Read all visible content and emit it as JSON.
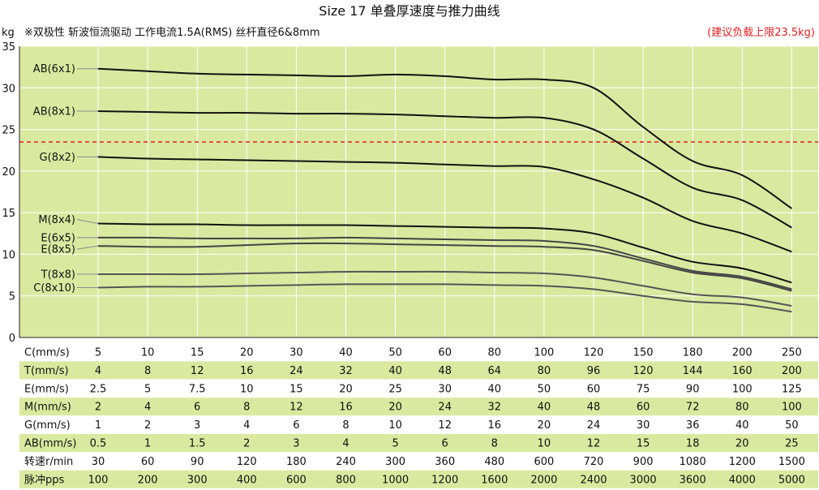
{
  "title": "Size 17 单叠厚速度与推力曲线",
  "subtitle": "※双极性 斩波恒流驱动 工作电流1.5A(RMS)  丝杆直径6&8mm",
  "ylabel": "kg",
  "note": "(建议负载上限23.5kg)",
  "colors": {
    "plot_bg": "#d9eaa0",
    "grid": "#ffffff",
    "curve_dark": "#111111",
    "curve_grey": "#555555",
    "limit_line": "#e02020",
    "note": "#e02020",
    "row_stripe": "#d9eaa0"
  },
  "chart_data": {
    "type": "line",
    "title": "Size 17 单叠厚速度与推力曲线",
    "ylabel": "kg",
    "ylim": [
      0,
      35
    ],
    "yticks": [
      "0",
      "5",
      "10",
      "15",
      "20",
      "25",
      "30",
      "35"
    ],
    "grid": true,
    "point_count": 15,
    "limit_line": {
      "value": 23.5,
      "label": "(建议负载上限23.5kg)"
    },
    "series": [
      {
        "name": "AB(6x1)",
        "color": "#111111",
        "values": [
          32.3,
          32.0,
          31.7,
          31.6,
          31.5,
          31.4,
          31.6,
          31.4,
          31.0,
          31.0,
          30.0,
          25.3,
          21.2,
          19.5,
          15.5
        ]
      },
      {
        "name": "AB(8x1)",
        "color": "#111111",
        "values": [
          27.2,
          27.1,
          27.0,
          27.0,
          26.9,
          26.9,
          26.8,
          26.6,
          26.4,
          26.4,
          25.0,
          21.5,
          18.0,
          16.5,
          13.2
        ]
      },
      {
        "name": "G(8x2)",
        "color": "#111111",
        "values": [
          21.7,
          21.5,
          21.4,
          21.3,
          21.2,
          21.1,
          21.0,
          20.8,
          20.6,
          20.5,
          19.0,
          16.8,
          14.0,
          12.5,
          10.3
        ]
      },
      {
        "name": "M(8x4)",
        "color": "#111111",
        "values": [
          13.7,
          13.6,
          13.6,
          13.5,
          13.5,
          13.5,
          13.4,
          13.3,
          13.2,
          13.1,
          12.5,
          10.8,
          9.1,
          8.3,
          6.6
        ]
      },
      {
        "name": "E(6x5)",
        "color": "#444444",
        "values": [
          12.0,
          12.0,
          11.9,
          11.9,
          11.9,
          12.0,
          11.9,
          11.8,
          11.7,
          11.6,
          11.0,
          9.5,
          8.0,
          7.3,
          5.8
        ]
      },
      {
        "name": "E(8x5)",
        "color": "#444444",
        "values": [
          11.0,
          10.9,
          10.9,
          11.1,
          11.3,
          11.3,
          11.2,
          11.1,
          11.0,
          10.9,
          10.5,
          9.2,
          7.8,
          7.1,
          5.6
        ]
      },
      {
        "name": "T(8x8)",
        "color": "#555555",
        "values": [
          7.6,
          7.6,
          7.6,
          7.7,
          7.8,
          7.9,
          7.9,
          7.9,
          7.8,
          7.7,
          7.2,
          6.2,
          5.2,
          4.8,
          3.8
        ]
      },
      {
        "name": "C(8x10)",
        "color": "#555555",
        "values": [
          6.0,
          6.1,
          6.1,
          6.2,
          6.3,
          6.4,
          6.4,
          6.4,
          6.3,
          6.2,
          5.8,
          5.0,
          4.3,
          4.0,
          3.1
        ]
      }
    ]
  },
  "table": {
    "rows": [
      {
        "label": "C(mm/s)",
        "values": [
          "5",
          "10",
          "15",
          "20",
          "30",
          "40",
          "50",
          "60",
          "80",
          "100",
          "120",
          "150",
          "180",
          "200",
          "250"
        ]
      },
      {
        "label": "T(mm/s)",
        "values": [
          "4",
          "8",
          "12",
          "16",
          "24",
          "32",
          "40",
          "48",
          "64",
          "80",
          "96",
          "120",
          "144",
          "160",
          "200"
        ]
      },
      {
        "label": "E(mm/s)",
        "values": [
          "2.5",
          "5",
          "7.5",
          "10",
          "15",
          "20",
          "25",
          "30",
          "40",
          "50",
          "60",
          "75",
          "90",
          "100",
          "125"
        ]
      },
      {
        "label": "M(mm/s)",
        "values": [
          "2",
          "4",
          "6",
          "8",
          "12",
          "16",
          "20",
          "24",
          "32",
          "40",
          "48",
          "60",
          "72",
          "80",
          "100"
        ]
      },
      {
        "label": "G(mm/s)",
        "values": [
          "1",
          "2",
          "3",
          "4",
          "6",
          "8",
          "10",
          "12",
          "16",
          "20",
          "24",
          "30",
          "36",
          "40",
          "50"
        ]
      },
      {
        "label": "AB(mm/s)",
        "values": [
          "0.5",
          "1",
          "1.5",
          "2",
          "3",
          "4",
          "5",
          "6",
          "8",
          "10",
          "12",
          "15",
          "18",
          "20",
          "25"
        ]
      },
      {
        "label": "转速r/min",
        "values": [
          "30",
          "60",
          "90",
          "120",
          "180",
          "240",
          "300",
          "360",
          "480",
          "600",
          "720",
          "900",
          "1080",
          "1200",
          "1500"
        ]
      },
      {
        "label": "脉冲pps",
        "values": [
          "100",
          "200",
          "300",
          "400",
          "600",
          "800",
          "1000",
          "1200",
          "1600",
          "2000",
          "2400",
          "3000",
          "3600",
          "4000",
          "5000"
        ]
      }
    ]
  }
}
